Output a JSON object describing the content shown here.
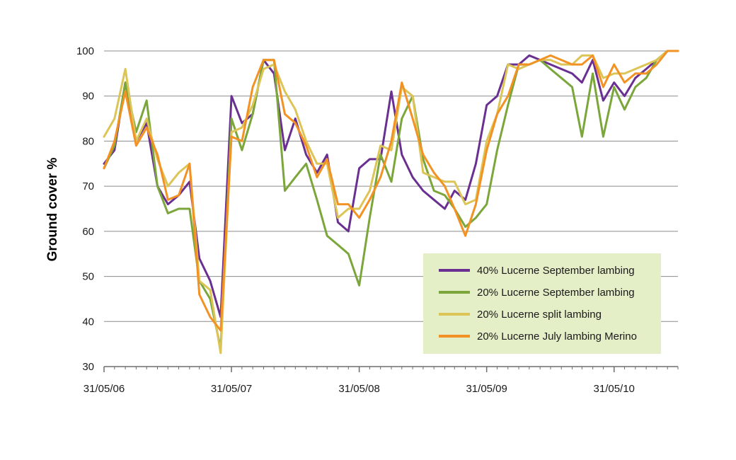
{
  "chart_data": {
    "type": "line",
    "title": "",
    "xlabel": "",
    "ylabel": "Ground cover %",
    "ylim": [
      30,
      100
    ],
    "yticks": [
      30,
      40,
      50,
      60,
      70,
      80,
      90,
      100
    ],
    "xlim": [
      "2006-05-31",
      "2010-11-30"
    ],
    "xticks": [
      {
        "date": "2006-05-31",
        "label": "31/05/06"
      },
      {
        "date": "2007-05-31",
        "label": "31/05/07"
      },
      {
        "date": "2008-05-31",
        "label": "31/05/08"
      },
      {
        "date": "2009-05-31",
        "label": "31/05/09"
      },
      {
        "date": "2010-05-31",
        "label": "31/05/10"
      }
    ],
    "grid": "horizontal",
    "legend_position": "lower-right",
    "legend_background": "#e4efc8",
    "x": [
      "2006-05-31",
      "2006-06-30",
      "2006-07-31",
      "2006-08-31",
      "2006-09-30",
      "2006-10-31",
      "2006-11-30",
      "2006-12-31",
      "2007-01-31",
      "2007-02-28",
      "2007-03-31",
      "2007-04-30",
      "2007-05-31",
      "2007-06-30",
      "2007-07-31",
      "2007-08-31",
      "2007-09-30",
      "2007-10-31",
      "2007-11-30",
      "2007-12-31",
      "2008-01-31",
      "2008-02-29",
      "2008-03-31",
      "2008-04-30",
      "2008-05-31",
      "2008-06-30",
      "2008-07-31",
      "2008-08-31",
      "2008-09-30",
      "2008-10-31",
      "2008-11-30",
      "2008-12-31",
      "2009-01-31",
      "2009-02-28",
      "2009-03-31",
      "2009-04-30",
      "2009-05-31",
      "2009-06-30",
      "2009-07-31",
      "2009-08-31",
      "2009-09-30",
      "2009-10-31",
      "2009-11-30",
      "2009-12-31",
      "2010-01-31",
      "2010-02-28",
      "2010-03-31",
      "2010-04-30",
      "2010-05-31",
      "2010-06-30",
      "2010-07-31",
      "2010-08-31",
      "2010-09-30",
      "2010-10-31",
      "2010-11-30"
    ],
    "series": [
      {
        "name": "40% Lucerne September lambing",
        "color": "#6a3091",
        "values": [
          75,
          78,
          93,
          80,
          84,
          70,
          66,
          68,
          71,
          54,
          49,
          41,
          90,
          84,
          86,
          98,
          95,
          78,
          85,
          77,
          73,
          77,
          62,
          60,
          74,
          76,
          76,
          91,
          77,
          72,
          69,
          67,
          65,
          69,
          67,
          75,
          88,
          90,
          97,
          97,
          99,
          98,
          97,
          96,
          95,
          93,
          98,
          89,
          93,
          90,
          94,
          96,
          98,
          100,
          100
        ]
      },
      {
        "name": "20% Lucerne September lambing",
        "color": "#7aa63a",
        "values": [
          74,
          79,
          93,
          82,
          89,
          70,
          64,
          65,
          65,
          49,
          45,
          34,
          85,
          78,
          86,
          98,
          98,
          69,
          72,
          75,
          67,
          59,
          57,
          55,
          48,
          63,
          77,
          71,
          85,
          90,
          76,
          69,
          68,
          65,
          61,
          63,
          66,
          78,
          88,
          97,
          97,
          98,
          96,
          94,
          92,
          81,
          95,
          81,
          92,
          87,
          92,
          94,
          98,
          100,
          100
        ]
      },
      {
        "name": "20% Lucerne split lambing",
        "color": "#dcc556",
        "values": [
          81,
          85,
          96,
          80,
          85,
          76,
          70,
          73,
          75,
          49,
          47,
          33,
          82,
          83,
          88,
          96,
          97,
          91,
          87,
          80,
          75,
          75,
          63,
          65,
          65,
          69,
          79,
          78,
          92,
          90,
          73,
          72,
          71,
          71,
          66,
          67,
          80,
          86,
          97,
          96,
          97,
          98,
          98,
          97,
          97,
          99,
          99,
          94,
          95,
          95,
          96,
          97,
          98,
          100,
          100
        ]
      },
      {
        "name": "20% Lucerne July lambing Merino",
        "color": "#f39224",
        "values": [
          74,
          80,
          91,
          79,
          83,
          77,
          67,
          68,
          75,
          46,
          41,
          38,
          81,
          80,
          92,
          98,
          98,
          86,
          84,
          79,
          72,
          76,
          66,
          66,
          63,
          67,
          72,
          80,
          93,
          85,
          77,
          73,
          70,
          65,
          59,
          66,
          78,
          86,
          90,
          97,
          97,
          98,
          99,
          98,
          97,
          97,
          99,
          92,
          97,
          93,
          95,
          95,
          97,
          100,
          100
        ]
      }
    ]
  }
}
